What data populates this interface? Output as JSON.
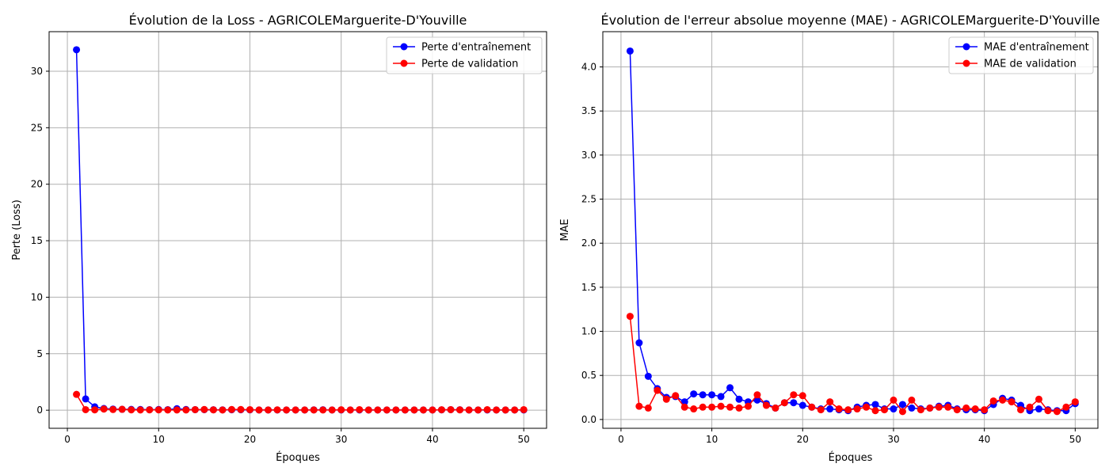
{
  "chart_data": [
    {
      "type": "line",
      "title": "Évolution de la Loss - AGRICOLEMarguerite-D'Youville",
      "xlabel": "Époques",
      "ylabel": "Perte (Loss)",
      "xlim": [
        -2,
        52.5
      ],
      "ylim": [
        -1.6,
        33.5
      ],
      "xticks": [
        0,
        10,
        20,
        30,
        40,
        50
      ],
      "yticks": [
        0,
        5,
        10,
        15,
        20,
        25,
        30
      ],
      "grid": true,
      "legend_position": "top-right",
      "x": [
        1,
        2,
        3,
        4,
        5,
        6,
        7,
        8,
        9,
        10,
        11,
        12,
        13,
        14,
        15,
        16,
        17,
        18,
        19,
        20,
        21,
        22,
        23,
        24,
        25,
        26,
        27,
        28,
        29,
        30,
        31,
        32,
        33,
        34,
        35,
        36,
        37,
        38,
        39,
        40,
        41,
        42,
        43,
        44,
        45,
        46,
        47,
        48,
        49,
        50
      ],
      "series": [
        {
          "name": "Perte d'entraînement",
          "color": "#0000ff",
          "values": [
            31.9,
            1.0,
            0.3,
            0.15,
            0.1,
            0.08,
            0.07,
            0.06,
            0.05,
            0.06,
            0.05,
            0.13,
            0.06,
            0.05,
            0.05,
            0.04,
            0.03,
            0.04,
            0.04,
            0.03,
            0.02,
            0.02,
            0.02,
            0.02,
            0.02,
            0.02,
            0.03,
            0.04,
            0.02,
            0.02,
            0.02,
            0.02,
            0.02,
            0.02,
            0.02,
            0.02,
            0.02,
            0.02,
            0.02,
            0.02,
            0.03,
            0.05,
            0.04,
            0.02,
            0.02,
            0.02,
            0.02,
            0.02,
            0.02,
            0.02
          ]
        },
        {
          "name": "Perte de validation",
          "color": "#ff0000",
          "values": [
            1.4,
            0.05,
            0.03,
            0.1,
            0.06,
            0.08,
            0.03,
            0.02,
            0.03,
            0.03,
            0.02,
            0.02,
            0.02,
            0.05,
            0.06,
            0.03,
            0.02,
            0.06,
            0.06,
            0.05,
            0.02,
            0.02,
            0.03,
            0.02,
            0.02,
            0.02,
            0.02,
            0.02,
            0.02,
            0.04,
            0.02,
            0.05,
            0.02,
            0.02,
            0.02,
            0.02,
            0.02,
            0.02,
            0.02,
            0.02,
            0.04,
            0.05,
            0.03,
            0.02,
            0.02,
            0.05,
            0.02,
            0.02,
            0.02,
            0.05
          ]
        }
      ]
    },
    {
      "type": "line",
      "title": "Évolution de l'erreur absolue moyenne (MAE) - AGRICOLEMarguerite-D'Youville",
      "xlabel": "Époques",
      "ylabel": "MAE",
      "xlim": [
        -2,
        52.5
      ],
      "ylim": [
        -0.1,
        4.4
      ],
      "xticks": [
        0,
        10,
        20,
        30,
        40,
        50
      ],
      "yticks": [
        0.0,
        0.5,
        1.0,
        1.5,
        2.0,
        2.5,
        3.0,
        3.5,
        4.0
      ],
      "ytick_labels": [
        "0.0",
        "0.5",
        "1.0",
        "1.5",
        "2.0",
        "2.5",
        "3.0",
        "3.5",
        "4.0"
      ],
      "grid": true,
      "legend_position": "top-right",
      "x": [
        1,
        2,
        3,
        4,
        5,
        6,
        7,
        8,
        9,
        10,
        11,
        12,
        13,
        14,
        15,
        16,
        17,
        18,
        19,
        20,
        21,
        22,
        23,
        24,
        25,
        26,
        27,
        28,
        29,
        30,
        31,
        32,
        33,
        34,
        35,
        36,
        37,
        38,
        39,
        40,
        41,
        42,
        43,
        44,
        45,
        46,
        47,
        48,
        49,
        50
      ],
      "series": [
        {
          "name": "MAE d'entraînement",
          "color": "#0000ff",
          "values": [
            4.18,
            0.87,
            0.49,
            0.35,
            0.25,
            0.26,
            0.2,
            0.29,
            0.28,
            0.28,
            0.26,
            0.36,
            0.23,
            0.2,
            0.22,
            0.18,
            0.13,
            0.19,
            0.19,
            0.16,
            0.14,
            0.12,
            0.12,
            0.11,
            0.1,
            0.14,
            0.16,
            0.17,
            0.12,
            0.12,
            0.17,
            0.13,
            0.12,
            0.13,
            0.15,
            0.16,
            0.12,
            0.11,
            0.11,
            0.1,
            0.17,
            0.24,
            0.22,
            0.16,
            0.1,
            0.12,
            0.11,
            0.1,
            0.1,
            0.18
          ]
        },
        {
          "name": "MAE de validation",
          "color": "#ff0000",
          "values": [
            1.17,
            0.15,
            0.13,
            0.33,
            0.23,
            0.27,
            0.14,
            0.12,
            0.14,
            0.14,
            0.15,
            0.14,
            0.13,
            0.15,
            0.28,
            0.16,
            0.13,
            0.19,
            0.28,
            0.27,
            0.14,
            0.11,
            0.2,
            0.12,
            0.11,
            0.12,
            0.14,
            0.1,
            0.11,
            0.22,
            0.09,
            0.22,
            0.11,
            0.13,
            0.14,
            0.14,
            0.11,
            0.13,
            0.12,
            0.11,
            0.21,
            0.22,
            0.2,
            0.11,
            0.14,
            0.23,
            0.1,
            0.09,
            0.14,
            0.2
          ]
        }
      ]
    }
  ]
}
